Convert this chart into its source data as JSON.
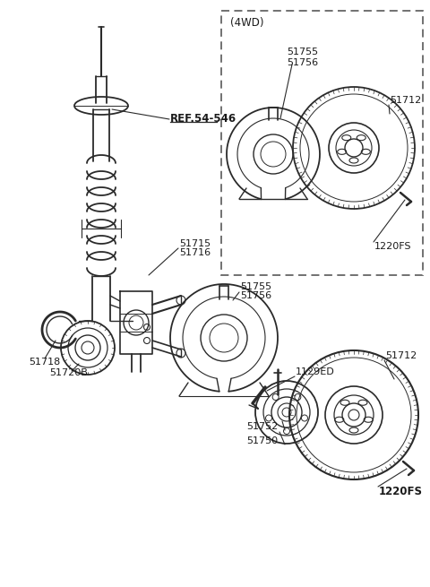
{
  "background_color": "#ffffff",
  "line_color": "#2a2a2a",
  "text_color": "#1a1a1a",
  "fig_width": 4.8,
  "fig_height": 6.55,
  "dpi": 100,
  "parts": {
    "strut_label": "REF.54-546",
    "part_51712_top": "51712",
    "part_51712_bottom": "51712",
    "part_51715": "51715",
    "part_51716": "51716",
    "part_51718": "51718",
    "part_51720B": "51720B",
    "part_51750": "51750",
    "part_51752": "51752",
    "part_51755_top": "51755",
    "part_51756_top": "51756",
    "part_51755_bottom": "51755",
    "part_51756_bottom": "51756",
    "part_1129ED": "1129ED",
    "part_1220FS_top": "1220FS",
    "part_1220FS_bottom": "1220FS",
    "label_4wd": "(4WD)"
  }
}
